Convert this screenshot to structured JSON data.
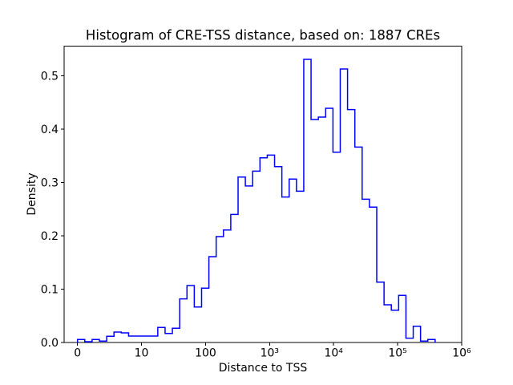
{
  "figure": {
    "background": "#ffffff",
    "frame_color": "#000000"
  },
  "chart_data": {
    "type": "step-histogram",
    "title": "Histogram of CRE-TSS distance, based on: 1887 CREs",
    "xlabel": "Distance to TSS",
    "ylabel": "Density",
    "n_cres": 1887,
    "series_color": "#0000ff",
    "legend": "none",
    "grid": false,
    "x_axis": {
      "scale": "log10(distance+1), symlog-style",
      "range_log": [
        -0.209,
        6.001
      ],
      "ticks": [
        {
          "label": "0",
          "log": 0
        },
        {
          "label": "10",
          "log": 1
        },
        {
          "label": "100",
          "log": 2
        },
        {
          "label": "10³",
          "log": 3
        },
        {
          "label": "10⁴",
          "log": 4
        },
        {
          "label": "10⁵",
          "log": 5
        },
        {
          "label": "10⁶",
          "log": 6
        }
      ]
    },
    "y_axis": {
      "range": [
        0,
        0.5558
      ],
      "ticks": [
        {
          "label": "0.0",
          "value": 0.0
        },
        {
          "label": "0.1",
          "value": 0.1
        },
        {
          "label": "0.2",
          "value": 0.2
        },
        {
          "label": "0.3",
          "value": 0.3
        },
        {
          "label": "0.4",
          "value": 0.4
        },
        {
          "label": "0.5",
          "value": 0.5
        }
      ]
    },
    "bins": {
      "edges_log10": [
        0.0,
        0.114,
        0.228,
        0.342,
        0.456,
        0.57,
        0.684,
        0.798,
        0.912,
        1.026,
        1.14,
        1.254,
        1.368,
        1.482,
        1.596,
        1.71,
        1.824,
        1.938,
        2.052,
        2.166,
        2.28,
        2.394,
        2.508,
        2.622,
        2.736,
        2.85,
        2.964,
        3.078,
        3.192,
        3.306,
        3.42,
        3.534,
        3.648,
        3.762,
        3.876,
        3.99,
        4.104,
        4.218,
        4.332,
        4.446,
        4.56,
        4.674,
        4.788,
        4.902,
        5.016,
        5.13,
        5.244,
        5.358,
        5.472,
        5.586
      ],
      "densities": [
        0.0059,
        0.0018,
        0.0059,
        0.003,
        0.0119,
        0.0199,
        0.0184,
        0.0123,
        0.0123,
        0.0123,
        0.0123,
        0.0284,
        0.0173,
        0.0269,
        0.082,
        0.1071,
        0.0669,
        0.1021,
        0.1612,
        0.1988,
        0.2113,
        0.2404,
        0.3105,
        0.2937,
        0.3216,
        0.3466,
        0.3517,
        0.3301,
        0.273,
        0.3066,
        0.284,
        0.5312,
        0.4183,
        0.4228,
        0.4394,
        0.357,
        0.5131,
        0.4369,
        0.3667,
        0.269,
        0.254,
        0.1135,
        0.071,
        0.0609,
        0.0886,
        0.0083,
        0.0308,
        0.003,
        0.0059
      ]
    }
  }
}
